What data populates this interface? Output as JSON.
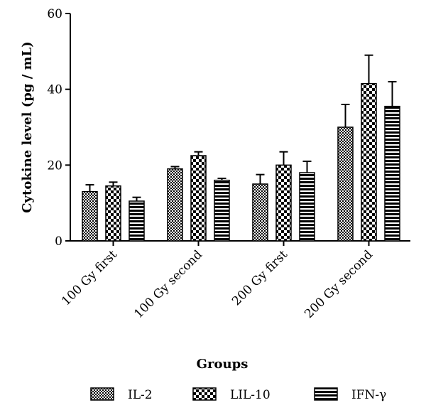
{
  "chart_data": {
    "type": "bar",
    "title": "",
    "xlabel": "Groups",
    "ylabel": "Cytokine level (pg / mL)",
    "ylim": [
      0,
      60
    ],
    "yticks": [
      "0",
      "20",
      "40",
      "60"
    ],
    "categories": [
      "100 Gy first",
      "100 Gy second",
      "200 Gy first",
      "200 Gy second"
    ],
    "series": [
      {
        "name": "IL-2",
        "pattern": "checker-small",
        "values": [
          13,
          19,
          15,
          30
        ],
        "errors": [
          1.8,
          0.6,
          2.5,
          6
        ]
      },
      {
        "name": "LIL-10",
        "pattern": "checker-large",
        "values": [
          14.5,
          22.5,
          20,
          41.5
        ],
        "errors": [
          1,
          1,
          3.5,
          7.5
        ]
      },
      {
        "name": "IFN-γ",
        "pattern": "horizontal-lines",
        "values": [
          10.5,
          16,
          18,
          35.5
        ],
        "errors": [
          1,
          0.5,
          3,
          6.5
        ]
      }
    ],
    "legend": "bottom",
    "grid": false,
    "colors": {
      "ink": "#000000",
      "background": "#ffffff"
    }
  }
}
